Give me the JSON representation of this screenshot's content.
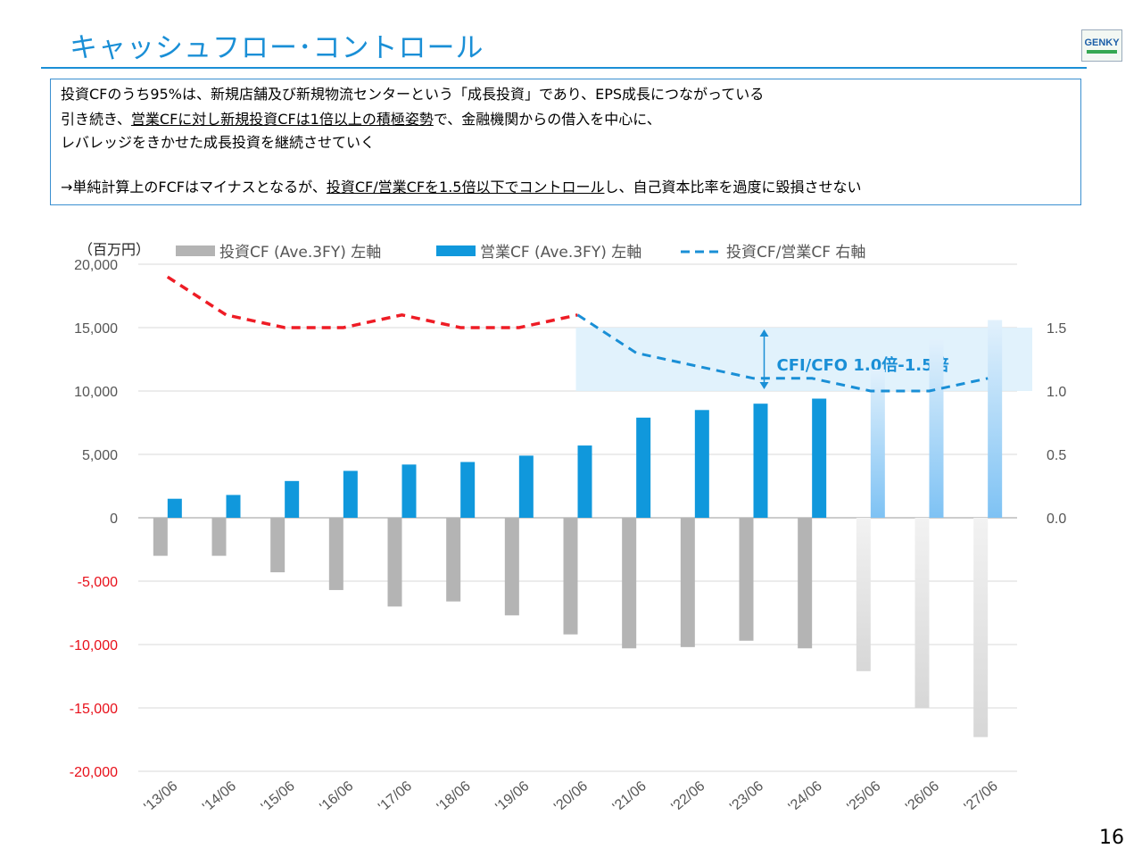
{
  "header": {
    "title": "キャッシュフロー･コントロール",
    "page_number": "16",
    "logo_text": "GENKY"
  },
  "notes": {
    "line1": "投資CFのうち95%は、新規店舗及び新規物流センターという「成長投資」であり、EPS成長につながっている",
    "line2_a": "引き続き、",
    "line2_b": "営業CFに対し新規投資CFは1倍以上の積極姿勢",
    "line2_c": "で、金融機関からの借入を中心に、",
    "line3": "レバレッジをきかせた成長投資を継続させていく",
    "line4_a": "→単純計算上のFCFはマイナスとなるが、",
    "line4_b": "投資CF/営業CFを1.5倍以下でコントロール",
    "line4_c": "し、自己資本比率を過度に毀損させない"
  },
  "chart_data": {
    "type": "bar",
    "unit_label": "（百万円）",
    "categories": [
      "'13/06",
      "'14/06",
      "'15/06",
      "'16/06",
      "'17/06",
      "'18/06",
      "'19/06",
      "'20/06",
      "'21/06",
      "'22/06",
      "'23/06",
      "'24/06",
      "'25/06",
      "'26/06",
      "'27/06"
    ],
    "series": [
      {
        "name": "投資CF (Ave.3FY) 左軸",
        "type": "bar",
        "axis": "left",
        "color": "#b4b4b4",
        "values": [
          -3000,
          -3000,
          -4300,
          -5700,
          -7000,
          -6600,
          -7700,
          -9200,
          -10300,
          -10200,
          -9700,
          -10300,
          -12100,
          -15000,
          -17300
        ]
      },
      {
        "name": "営業CF (Ave.3FY) 左軸",
        "type": "bar",
        "axis": "left",
        "color": "#1098dc",
        "values": [
          1500,
          1800,
          2900,
          3700,
          4200,
          4400,
          4900,
          5700,
          7900,
          8500,
          9000,
          9400,
          11700,
          14100,
          15600
        ]
      },
      {
        "name": "投資CF/営業CF 右軸",
        "type": "line",
        "axis": "right",
        "style": "dashed",
        "values": [
          1.9,
          1.6,
          1.5,
          1.5,
          1.6,
          1.5,
          1.5,
          1.6,
          1.3,
          1.2,
          1.1,
          1.1,
          1.0,
          1.0,
          1.1
        ]
      }
    ],
    "forecast_from_index": 12,
    "ratio_actual_color": "#ee1c25",
    "ratio_forecast_color": "#1a8fd6",
    "left_axis": {
      "min": -20000,
      "max": 20000,
      "ticks": [
        20000,
        15000,
        10000,
        5000,
        0,
        -5000,
        -10000,
        -15000,
        -20000
      ],
      "tick_labels": [
        "20,000",
        "15,000",
        "10,000",
        "5,000",
        "0",
        "-5,000",
        "-10,000",
        "-15,000",
        "-20,000"
      ]
    },
    "right_axis": {
      "min": -2.0,
      "max": 2.0,
      "ticks": [
        1.5,
        1.0,
        0.5,
        0.0
      ],
      "tick_labels": [
        "1.5",
        "1.0",
        "0.5",
        "0.0"
      ]
    },
    "band": {
      "from_index": 7,
      "to_index": 14,
      "ratio_low": 1.0,
      "ratio_high": 1.5,
      "label": "CFI/CFO 1.0倍-1.5倍"
    },
    "grid": true,
    "legend_position": "top"
  }
}
